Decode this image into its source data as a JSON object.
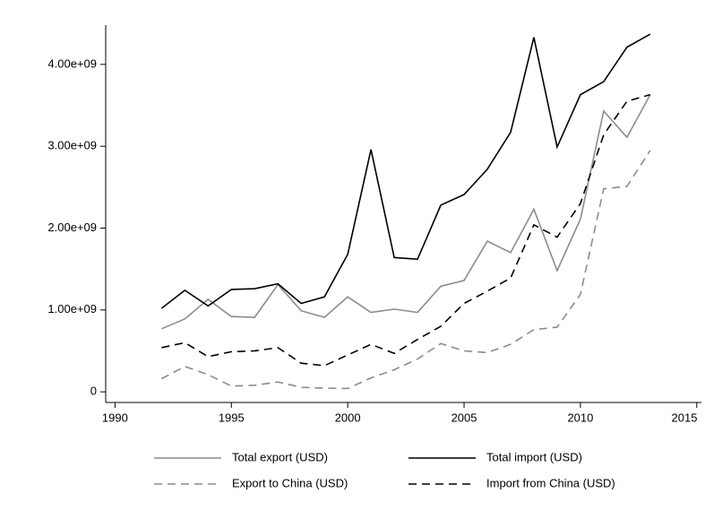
{
  "chart_data": {
    "type": "line",
    "x": [
      1992,
      1993,
      1994,
      1995,
      1996,
      1997,
      1998,
      1999,
      2000,
      2001,
      2002,
      2003,
      2004,
      2005,
      2006,
      2007,
      2008,
      2009,
      2010,
      2011,
      2012,
      2013
    ],
    "series": [
      {
        "name": "Total export (USD)",
        "color": "#8c8c8c",
        "dash": false,
        "values": [
          770000000.0,
          890000000.0,
          1130000000.0,
          920000000.0,
          910000000.0,
          1310000000.0,
          990000000.0,
          910000000.0,
          1160000000.0,
          970000000.0,
          1010000000.0,
          970000000.0,
          1290000000.0,
          1360000000.0,
          1840000000.0,
          1700000000.0,
          2230000000.0,
          1480000000.0,
          2110000000.0,
          3430000000.0,
          3110000000.0,
          3630000000.0
        ]
      },
      {
        "name": "Total import (USD)",
        "color": "#000000",
        "dash": false,
        "values": [
          1020000000.0,
          1240000000.0,
          1050000000.0,
          1250000000.0,
          1260000000.0,
          1320000000.0,
          1080000000.0,
          1160000000.0,
          1680000000.0,
          2960000000.0,
          1640000000.0,
          1620000000.0,
          2280000000.0,
          2410000000.0,
          2720000000.0,
          3170000000.0,
          4330000000.0,
          2990000000.0,
          3630000000.0,
          3790000000.0,
          4210000000.0,
          4370000000.0
        ]
      },
      {
        "name": "Export to China (USD)",
        "color": "#8c8c8c",
        "dash": true,
        "values": [
          160000000.0,
          310000000.0,
          210000000.0,
          70000000.0,
          80000000.0,
          120000000.0,
          55000000.0,
          45000000.0,
          40000000.0,
          170000000.0,
          270000000.0,
          400000000.0,
          590000000.0,
          500000000.0,
          480000000.0,
          580000000.0,
          760000000.0,
          790000000.0,
          1190000000.0,
          2480000000.0,
          2510000000.0,
          2950000000.0
        ]
      },
      {
        "name": "Import from China (USD)",
        "color": "#000000",
        "dash": true,
        "values": [
          540000000.0,
          600000000.0,
          430000000.0,
          490000000.0,
          500000000.0,
          540000000.0,
          350000000.0,
          320000000.0,
          450000000.0,
          580000000.0,
          470000000.0,
          640000000.0,
          800000000.0,
          1080000000.0,
          1230000000.0,
          1390000000.0,
          2040000000.0,
          1890000000.0,
          2300000000.0,
          3140000000.0,
          3550000000.0,
          3630000000.0
        ]
      }
    ],
    "xlim": [
      1989.6,
      2015.2
    ],
    "xticks": [
      1990,
      1995,
      2000,
      2005,
      2010,
      2015
    ],
    "ylim": [
      -130000000,
      4480000000
    ],
    "yticks": [
      0,
      {
        "value": 1000000000,
        "label": "1.00e+09"
      },
      {
        "value": 2000000000,
        "label": "2.00e+09"
      },
      {
        "value": 3000000000,
        "label": "3.00e+09"
      },
      {
        "value": 4000000000,
        "label": "4.00e+09"
      }
    ],
    "grid": false,
    "legend": "bottom"
  }
}
